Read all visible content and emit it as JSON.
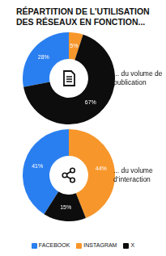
{
  "title": "RÉPARTITION DE L’UTILISATION DES RÉSEAUX EN FONCTION...",
  "chart_data": [
    {
      "type": "doughnut",
      "title": "... du volume de publication",
      "categories": [
        "FACEBOOK",
        "INSTAGRAM",
        "X"
      ],
      "values": [
        28,
        5,
        67
      ],
      "value_labels": [
        "28%",
        "5%",
        "67%"
      ],
      "colors": [
        "#2a7ff0",
        "#f7962b",
        "#0d0d0d"
      ],
      "data_labels": true
    },
    {
      "type": "doughnut",
      "title": "... du volume d’interaction",
      "categories": [
        "FACEBOOK",
        "INSTAGRAM",
        "X"
      ],
      "values": [
        41,
        44,
        15
      ],
      "value_labels": [
        "41%",
        "44%",
        "15%"
      ],
      "colors": [
        "#2a7ff0",
        "#f7962b",
        "#0d0d0d"
      ],
      "data_labels": true,
      "legend": "bottom"
    }
  ]
}
